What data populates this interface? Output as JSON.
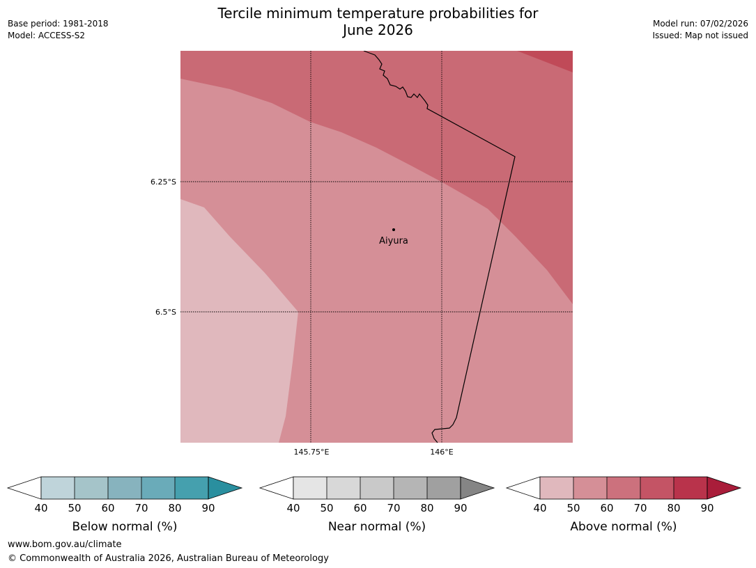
{
  "header": {
    "title_line1": "Tercile minimum temperature probabilities for",
    "title_line2": "June 2026",
    "base_period": "Base period: 1981-2018",
    "model": "Model: ACCESS-S2",
    "model_run": "Model run: 07/02/2026",
    "issued": "Issued: Map not issued"
  },
  "map": {
    "lat_labels": [
      "6.25°S",
      "6.5°S"
    ],
    "lon_labels": [
      "145.75°E",
      "146°E"
    ],
    "place": "Aiyura",
    "colors": {
      "band_40_50": "#e0b8bd",
      "band_50_60": "#d58f97",
      "band_60_70": "#c96a75",
      "band_70_80": "#c04a58"
    }
  },
  "legends": [
    {
      "label": "Below normal (%)",
      "ticks": [
        "40",
        "50",
        "60",
        "70",
        "80",
        "90"
      ],
      "colors": [
        "#bfd4da",
        "#a5c4c9",
        "#87b3be",
        "#6aabb9",
        "#45a0ae",
        "#2a8f9f"
      ]
    },
    {
      "label": "Near normal (%)",
      "ticks": [
        "40",
        "50",
        "60",
        "70",
        "80",
        "90"
      ],
      "colors": [
        "#e5e5e5",
        "#d8d8d8",
        "#c9c9c9",
        "#b5b5b5",
        "#a0a0a0",
        "#858585"
      ]
    },
    {
      "label": "Above normal (%)",
      "ticks": [
        "40",
        "50",
        "60",
        "70",
        "80",
        "90"
      ],
      "colors": [
        "#e0b8bd",
        "#d58f97",
        "#cc717d",
        "#c45465",
        "#b9334b",
        "#a91d3a"
      ]
    }
  ],
  "footer": {
    "url": "www.bom.gov.au/climate",
    "copyright": "© Commonwealth of Australia 2026, Australian Bureau of Meteorology"
  }
}
